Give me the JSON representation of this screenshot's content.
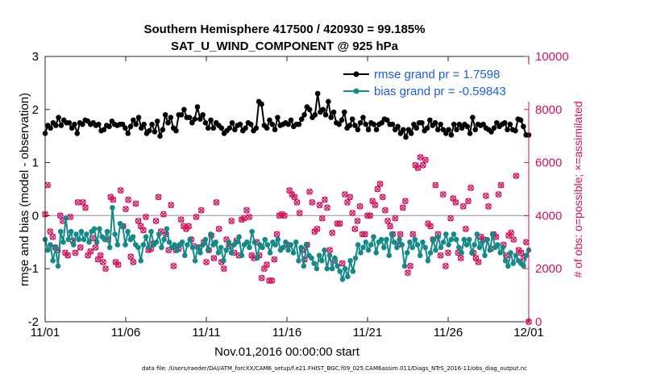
{
  "chart_data": {
    "type": "line",
    "title_line1": "Southern Hemisphere 417500 / 420930 = 99.185%",
    "title_line2": "SAT_U_WIND_COMPONENT @ 925 hPa",
    "xlabel": "Nov.01,2016 00:00:00 start",
    "ylabel_left": "rmse and bias (model - observation)",
    "ylabel_right": "# of obs: o=possible; ×=assimilated",
    "footnote": "data file: /Users/raeder/DAI/ATM_forcXX/CAM6_setup/f.e21.FHIST_BGC.f09_025.CAM6assim.011/Diags_NTrS_2016-11/obs_diag_output.nc",
    "xlim": [
      0,
      30
    ],
    "ylim_left": [
      -2,
      3
    ],
    "ylim_right": [
      0,
      10000
    ],
    "x_tick_values": [
      0,
      5,
      10,
      15,
      20,
      25,
      30
    ],
    "x_tick_labels": [
      "11/01",
      "11/06",
      "11/11",
      "11/16",
      "11/21",
      "11/26",
      "12/01"
    ],
    "y_left_ticks": [
      -2,
      -1,
      0,
      1,
      2,
      3
    ],
    "y_right_ticks": [
      0,
      2000,
      4000,
      6000,
      8000,
      10000
    ],
    "zero_line": 0,
    "legend": [
      {
        "name": "rmse grand pr = 1.7598",
        "color": "#000000"
      },
      {
        "name": "bias grand pr = -0.59843",
        "color": "#138a87"
      }
    ],
    "colors": {
      "rmse": "#000000",
      "bias": "#138a87",
      "obs": "#d6105f",
      "zero_line": "#b3b3b3"
    },
    "series": [
      {
        "name": "rmse",
        "axis": "left",
        "values": [
          1.55,
          1.7,
          1.65,
          1.75,
          1.7,
          1.85,
          1.7,
          1.8,
          1.75,
          1.75,
          1.65,
          1.72,
          1.55,
          1.75,
          1.72,
          1.8,
          1.78,
          1.72,
          1.75,
          1.7,
          1.72,
          1.6,
          1.62,
          1.7,
          1.68,
          1.78,
          1.72,
          1.7,
          1.72,
          1.72,
          1.65,
          1.55,
          1.68,
          1.8,
          1.72,
          1.85,
          1.65,
          1.72,
          1.55,
          1.6,
          1.72,
          1.58,
          1.78,
          1.5,
          1.62,
          1.9,
          1.75,
          1.85,
          1.65,
          1.6,
          1.9,
          1.9,
          2.0,
          1.85,
          1.85,
          1.75,
          1.82,
          2.05,
          1.82,
          1.9,
          1.75,
          1.65,
          1.8,
          1.65,
          1.75,
          1.7,
          1.65,
          1.55,
          1.6,
          1.65,
          1.75,
          1.62,
          1.7,
          1.72,
          1.6,
          1.65,
          1.75,
          1.72,
          1.6,
          1.65,
          2.15,
          2.1,
          1.7,
          1.65,
          1.8,
          1.72,
          1.62,
          1.85,
          1.7,
          1.72,
          1.75,
          1.72,
          1.8,
          1.68,
          1.72,
          1.72,
          1.82,
          1.9,
          2.05,
          2.0,
          1.85,
          1.9,
          2.3,
          1.95,
          2.0,
          1.9,
          2.15,
          1.85,
          1.95,
          1.75,
          1.72,
          1.8,
          1.95,
          1.65,
          1.7,
          1.82,
          1.7,
          1.62,
          1.75,
          1.85,
          1.72,
          1.62,
          1.75,
          1.72,
          1.62,
          1.72,
          1.75,
          1.82,
          1.8,
          1.72,
          1.72,
          1.62,
          1.68,
          1.55,
          1.62,
          1.48,
          1.62,
          1.55,
          1.72,
          1.65,
          1.75,
          1.75,
          1.6,
          1.65,
          1.8,
          1.7,
          1.75,
          1.62,
          1.72,
          1.62,
          1.55,
          1.62,
          1.52,
          1.72,
          1.62,
          1.72,
          1.65,
          1.72,
          1.68,
          1.55,
          1.85,
          1.62,
          1.72,
          1.7,
          1.72,
          1.65,
          1.62,
          1.58,
          1.65,
          1.75,
          1.68,
          1.72,
          1.75,
          1.62,
          1.72,
          1.62,
          1.6,
          1.82,
          1.8,
          1.68,
          1.52,
          1.52
        ]
      },
      {
        "name": "bias",
        "axis": "left",
        "values": [
          -0.45,
          -0.65,
          -0.55,
          -0.85,
          -0.6,
          -0.95,
          -0.3,
          -0.5,
          -0.05,
          -0.45,
          -0.3,
          -0.55,
          -0.35,
          -0.45,
          -0.3,
          -0.45,
          -0.35,
          -0.5,
          -0.3,
          -0.25,
          -0.5,
          -0.25,
          -0.4,
          -0.45,
          -0.3,
          -0.6,
          0.15,
          -0.35,
          -0.55,
          -0.15,
          -0.2,
          -0.55,
          -0.3,
          -0.45,
          -0.4,
          -0.55,
          -0.6,
          -0.85,
          -0.55,
          -0.4,
          -0.6,
          -0.3,
          -0.55,
          -0.5,
          -0.35,
          -0.6,
          -0.45,
          -0.25,
          -0.5,
          -0.6,
          -0.55,
          -0.65,
          -0.55,
          -0.5,
          -0.75,
          -0.55,
          -0.45,
          -0.6,
          -0.85,
          -0.6,
          -0.7,
          -0.55,
          -0.45,
          -0.65,
          -0.35,
          -0.55,
          -0.5,
          -0.7,
          -0.6,
          -0.85,
          -0.65,
          -0.5,
          -0.7,
          -0.55,
          -0.5,
          -0.4,
          -0.75,
          -0.55,
          -0.5,
          -0.6,
          -0.3,
          -0.5,
          -0.8,
          -0.55,
          -0.6,
          -0.45,
          -0.55,
          -0.7,
          -0.5,
          -0.55,
          -0.45,
          -0.65,
          -0.6,
          -0.5,
          -0.65,
          -0.55,
          -0.7,
          -0.5,
          -0.85,
          -0.6,
          -0.95,
          -0.55,
          -0.75,
          -0.8,
          -0.9,
          -1.0,
          -0.75,
          -0.85,
          -0.65,
          -1.0,
          -0.75,
          -1.0,
          -0.8,
          -0.95,
          -1.05,
          -1.2,
          -1.0,
          -1.15,
          -0.85,
          -1.05,
          -0.8,
          -0.55,
          -0.7,
          -0.6,
          -0.5,
          -0.65,
          -0.55,
          -0.4,
          -0.7,
          -0.5,
          -0.45,
          -0.6,
          -0.45,
          -0.75,
          -0.35,
          -0.5,
          -0.6,
          -0.45,
          -0.55,
          -0.95,
          -0.7,
          -0.5,
          -0.6,
          -0.45,
          -0.55,
          -0.75,
          -0.5,
          -0.6,
          -0.85,
          -0.7,
          -0.45,
          -0.65,
          -0.4,
          -0.6,
          -0.5,
          -0.35,
          -0.55,
          -0.45,
          -0.35,
          -0.45,
          -0.6,
          -0.7,
          -0.45,
          -0.55,
          -0.45,
          -0.7,
          -0.55,
          -0.35,
          -0.6,
          -0.5,
          -0.75,
          -0.45,
          -0.65,
          -0.35,
          -0.6,
          -0.55,
          -0.7,
          -0.6,
          -0.85,
          -0.95,
          -0.7,
          -0.9,
          -0.75,
          -0.85,
          -0.9,
          -0.95,
          -0.75,
          -0.65
        ]
      },
      {
        "name": "obs possible / assimilated",
        "axis": "right",
        "values": [
          4050,
          5150,
          3400,
          3200,
          2800,
          2700,
          4000,
          3800,
          2600,
          2500,
          3950,
          3050,
          2600,
          4500,
          2800,
          4500,
          4300,
          2500,
          2650,
          3150,
          2800,
          2350,
          2500,
          2250,
          2000,
          3100,
          4700,
          4600,
          2250,
          2150,
          4950,
          3600,
          4250,
          4600,
          2450,
          2250,
          4450,
          3800,
          3600,
          3450,
          3950,
          2700,
          2750,
          2950,
          3800,
          4700,
          3400,
          4050,
          3300,
          2700,
          4400,
          2100,
          2700,
          2750,
          3850,
          3600,
          3500,
          3600,
          3100,
          2850,
          3950,
          2800,
          4200,
          3000,
          2250,
          2700,
          3250,
          2400,
          4500,
          3500,
          2250,
          2000,
          3100,
          2850,
          3800,
          2600,
          3050,
          2500,
          3850,
          3900,
          4200,
          3950,
          2500,
          2400,
          3000,
          2500,
          1650,
          2000,
          2150,
          1550,
          1550,
          2350,
          3300,
          4000,
          4050,
          4000,
          2900,
          4950,
          4800,
          4700,
          4500,
          4100,
          2700,
          2350,
          2900,
          4900,
          4500,
          3400,
          3500,
          4400,
          3900,
          4600,
          4300,
          2700,
          3350,
          2300,
          3700,
          3700,
          2200,
          4800,
          4500,
          4700,
          4100,
          3500,
          3800,
          4350,
          3300,
          3300,
          4000,
          4000,
          4550,
          4400,
          5000,
          5200,
          4700,
          4200,
          3800,
          3600,
          3300,
          3900,
          2900,
          3300,
          4300,
          4550,
          1850,
          2100,
          3300,
          5900,
          5800,
          6200,
          5900,
          6100,
          3700,
          3600,
          3100,
          5150,
          3300,
          2500,
          4800,
          2100,
          2600,
          3900,
          4650,
          4500,
          2600,
          2400,
          4350,
          3500,
          4550,
          5050,
          2600,
          2400,
          2250,
          3200,
          3100,
          4750,
          4350,
          2750,
          3300,
          3200,
          4800,
          5150,
          2900,
          2500,
          3250,
          3350,
          3100,
          5500,
          2700,
          2600,
          2400,
          3000,
          0
        ]
      }
    ]
  }
}
